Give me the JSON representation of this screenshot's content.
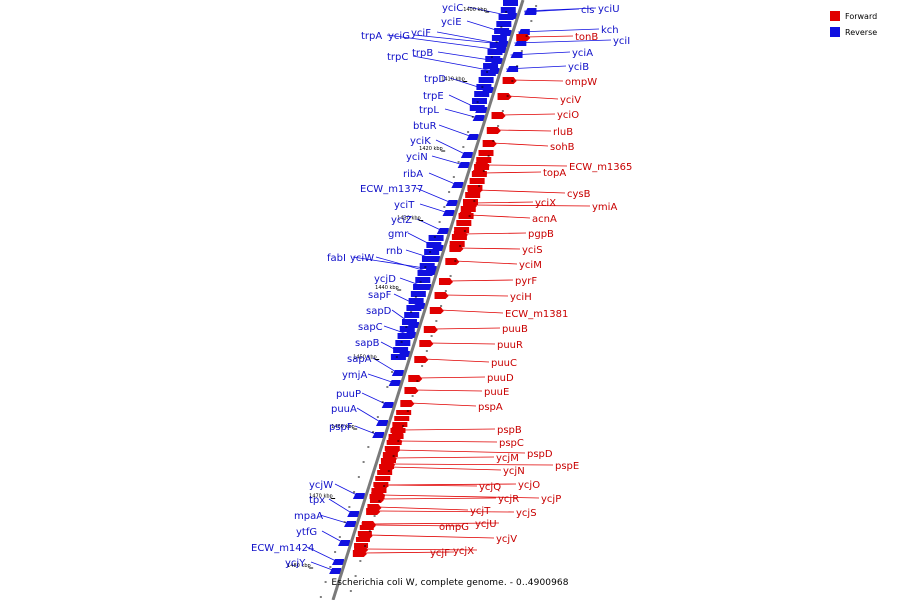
{
  "legend": {
    "forward": {
      "label": "Forward",
      "color": "#e00000"
    },
    "reverse": {
      "label": "Reverse",
      "color": "#1010e0"
    }
  },
  "caption": "Escherichia coli W, complete genome. - 0..4900968",
  "tick_labels": [
    "1400 kbp",
    "1410 kbp",
    "1420 kbp",
    "1430 kbp",
    "1440 kbp",
    "1450 kbp",
    "1460 kbp",
    "1470 kbp",
    "1480 kbp"
  ],
  "reverse_genes": [
    "yciC",
    "yciE",
    "trpA",
    "yciG",
    "yciF",
    "trpC",
    "trpB",
    "trpD",
    "trpE",
    "trpL",
    "btuR",
    "yciK",
    "yciN",
    "ribA",
    "ECW_m1377",
    "yciT",
    "yciZ",
    "gmr",
    "rnb",
    "fabI",
    "yciW",
    "ycjD",
    "sapF",
    "sapD",
    "sapC",
    "sapB",
    "sapA",
    "ymjA",
    "puuP",
    "puuA",
    "pspF",
    "ycjW",
    "tpx",
    "mpaA",
    "ytfG",
    "ECW_m1424",
    "ycjY",
    "cls",
    "yciU",
    "kch",
    "yciI",
    "yciA",
    "yciB"
  ],
  "forward_genes": [
    "tonB",
    "ompW",
    "yciV",
    "yciO",
    "rluB",
    "sohB",
    "topA",
    "ECW_m1365",
    "cysB",
    "yciX",
    "ymiA",
    "acnA",
    "pgpB",
    "yciS",
    "yciM",
    "pyrF",
    "yciH",
    "ECW_m1381",
    "puuB",
    "puuR",
    "puuC",
    "puuD",
    "puuE",
    "pspA",
    "pspB",
    "pspC",
    "pspD",
    "ycjM",
    "pspE",
    "ycjN",
    "ycjO",
    "ycjQ",
    "ycjP",
    "ycjR",
    "ycjS",
    "ycjT",
    "ycjU",
    "ompG",
    "ycjV",
    "ycjF",
    "ycjX"
  ]
}
